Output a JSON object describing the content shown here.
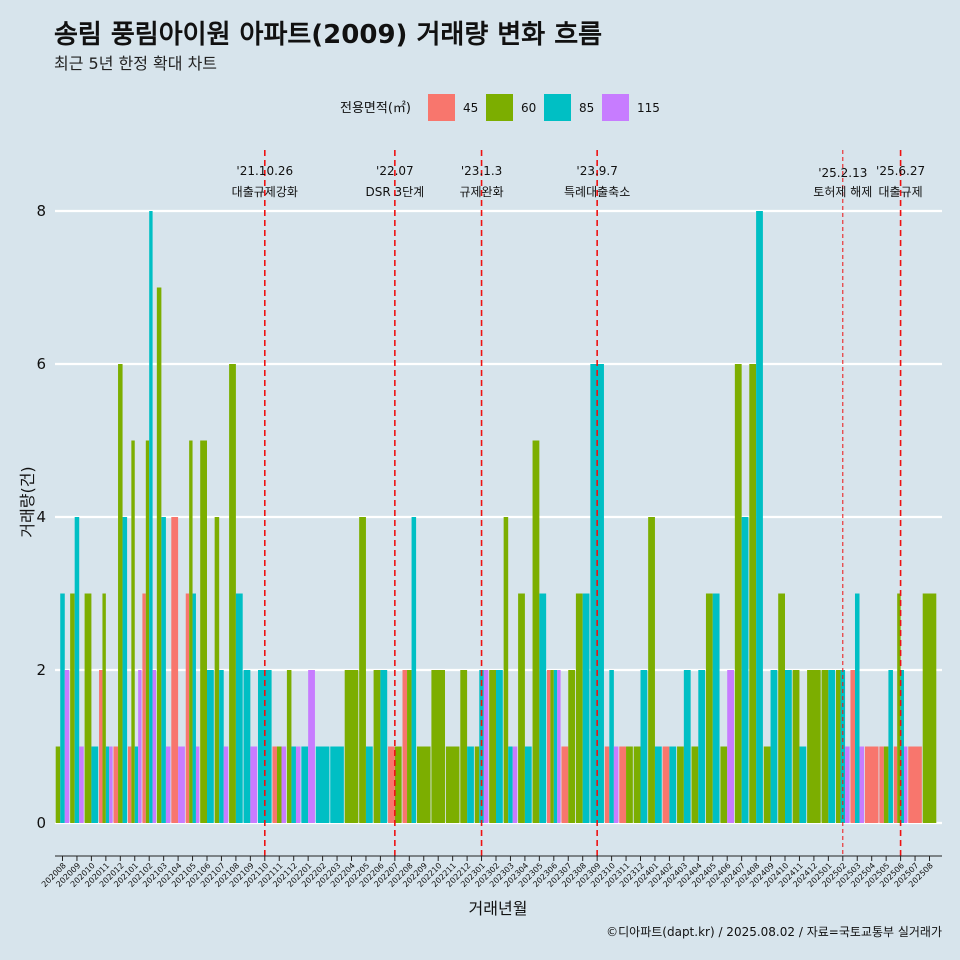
{
  "chart_data": {
    "type": "bar",
    "title": "송림 풍림아이원 아파트(2009) 거래량 변화 흐름",
    "subtitle": "최근 5년 한정 확대 차트",
    "xlabel": "거래년월",
    "ylabel": "거래량(건)",
    "ylim": [
      0,
      8
    ],
    "yticks": [
      0,
      2,
      4,
      6,
      8
    ],
    "grid": "horizontal",
    "legend": {
      "title": "전용면적(㎡)",
      "placement": "top"
    },
    "caption": "©디아파트(dapt.kr) / 2025.08.02 / 자료=국토교통부 실거래가",
    "categories": [
      "202008",
      "202009",
      "202010",
      "202011",
      "202012",
      "202101",
      "202102",
      "202103",
      "202104",
      "202105",
      "202106",
      "202107",
      "202108",
      "202109",
      "202110",
      "202111",
      "202112",
      "202201",
      "202202",
      "202203",
      "202204",
      "202205",
      "202206",
      "202207",
      "202208",
      "202209",
      "202210",
      "202211",
      "202212",
      "202301",
      "202302",
      "202303",
      "202304",
      "202305",
      "202306",
      "202307",
      "202308",
      "202309",
      "202310",
      "202311",
      "202312",
      "202401",
      "202402",
      "202403",
      "202404",
      "202405",
      "202406",
      "202407",
      "202408",
      "202409",
      "202410",
      "202411",
      "202412",
      "202501",
      "202502",
      "202503",
      "202504",
      "202505",
      "202506",
      "202507",
      "202508"
    ],
    "series": [
      {
        "name": "45",
        "color": "#f8766d",
        "values": [
          0,
          0,
          0,
          2,
          1,
          1,
          3,
          0,
          4,
          3,
          0,
          0,
          0,
          0,
          0,
          1,
          0,
          0,
          0,
          0,
          0,
          0,
          0,
          1,
          2,
          0,
          0,
          0,
          0,
          0,
          0,
          0,
          0,
          0,
          2,
          1,
          0,
          0,
          1,
          1,
          0,
          0,
          1,
          0,
          0,
          0,
          0,
          0,
          0,
          0,
          0,
          0,
          0,
          0,
          0,
          2,
          1,
          1,
          1,
          1,
          0
        ]
      },
      {
        "name": "60",
        "color": "#7cae00",
        "values": [
          1,
          3,
          3,
          3,
          6,
          5,
          5,
          7,
          0,
          5,
          5,
          4,
          6,
          0,
          0,
          1,
          2,
          0,
          0,
          0,
          2,
          4,
          2,
          1,
          2,
          1,
          2,
          1,
          2,
          1,
          2,
          4,
          3,
          5,
          2,
          2,
          3,
          0,
          0,
          1,
          1,
          4,
          0,
          1,
          1,
          3,
          1,
          6,
          6,
          1,
          3,
          2,
          2,
          2,
          2,
          0,
          0,
          1,
          3,
          0,
          3
        ]
      },
      {
        "name": "85",
        "color": "#00bfc4",
        "values": [
          3,
          4,
          1,
          1,
          4,
          1,
          8,
          4,
          0,
          3,
          2,
          2,
          3,
          2,
          2,
          0,
          1,
          1,
          1,
          1,
          0,
          1,
          2,
          0,
          4,
          0,
          0,
          0,
          1,
          2,
          2,
          1,
          1,
          3,
          2,
          0,
          3,
          6,
          2,
          0,
          2,
          1,
          1,
          2,
          2,
          3,
          0,
          4,
          8,
          2,
          2,
          1,
          0,
          2,
          2,
          3,
          0,
          2,
          2,
          0,
          0
        ]
      },
      {
        "name": "115",
        "color": "#c77cff",
        "values": [
          2,
          1,
          0,
          1,
          0,
          2,
          2,
          1,
          1,
          1,
          0,
          1,
          0,
          1,
          0,
          1,
          1,
          2,
          0,
          0,
          0,
          0,
          0,
          0,
          0,
          0,
          0,
          0,
          0,
          2,
          0,
          1,
          0,
          0,
          2,
          0,
          0,
          0,
          1,
          0,
          0,
          0,
          0,
          0,
          0,
          0,
          2,
          0,
          0,
          0,
          0,
          0,
          0,
          0,
          1,
          1,
          0,
          0,
          1,
          0,
          0
        ]
      }
    ],
    "events": [
      {
        "date": "'21.10.26",
        "label": "대출규제강화",
        "category": "202110"
      },
      {
        "date": "'22.07",
        "label": "DSR 3단계",
        "category": "202207"
      },
      {
        "date": "'23.1.3",
        "label": "규제완화",
        "category": "202301"
      },
      {
        "date": "'23.9.7",
        "label": "특례대출축소",
        "category": "202309"
      },
      {
        "date": "'25.2.13",
        "label": "토허제 해제",
        "category": "202502"
      },
      {
        "date": "'25.6.27",
        "label": "대출규제",
        "category": "202506"
      }
    ]
  }
}
